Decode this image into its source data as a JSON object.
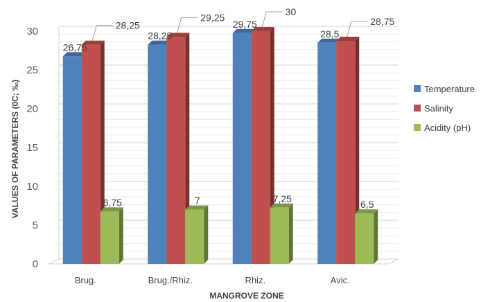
{
  "chart_data": {
    "type": "bar",
    "categories": [
      "Brug.",
      "Brug./Rhiz.",
      "Rhiz.",
      "Avic."
    ],
    "series": [
      {
        "name": "Temperature",
        "values": [
          26.75,
          28.25,
          29.75,
          28.5
        ],
        "labels": [
          "26,75",
          "28,25",
          "29,75",
          "28,5"
        ],
        "color": "#4F81BD"
      },
      {
        "name": "Salinity",
        "values": [
          28.25,
          29.25,
          30,
          28.75
        ],
        "labels": [
          "28,25",
          "29,25",
          "30",
          "28,75"
        ],
        "color": "#C0504D"
      },
      {
        "name": "Acidity (pH)",
        "values": [
          6.75,
          7,
          7.25,
          6.5
        ],
        "labels": [
          "6,75",
          "7",
          "7,25",
          "6,5"
        ],
        "color": "#9BBB59"
      }
    ],
    "xlabel": "MANGROVE ZONE",
    "ylabel": "VALUES OF PARAMETERS (0C; ‰)",
    "ylim": [
      0,
      30
    ],
    "yticks": [
      0,
      5,
      10,
      15,
      20,
      25,
      30
    ],
    "grid": true,
    "legend_position": "right",
    "style": "3d-clustered-column"
  }
}
